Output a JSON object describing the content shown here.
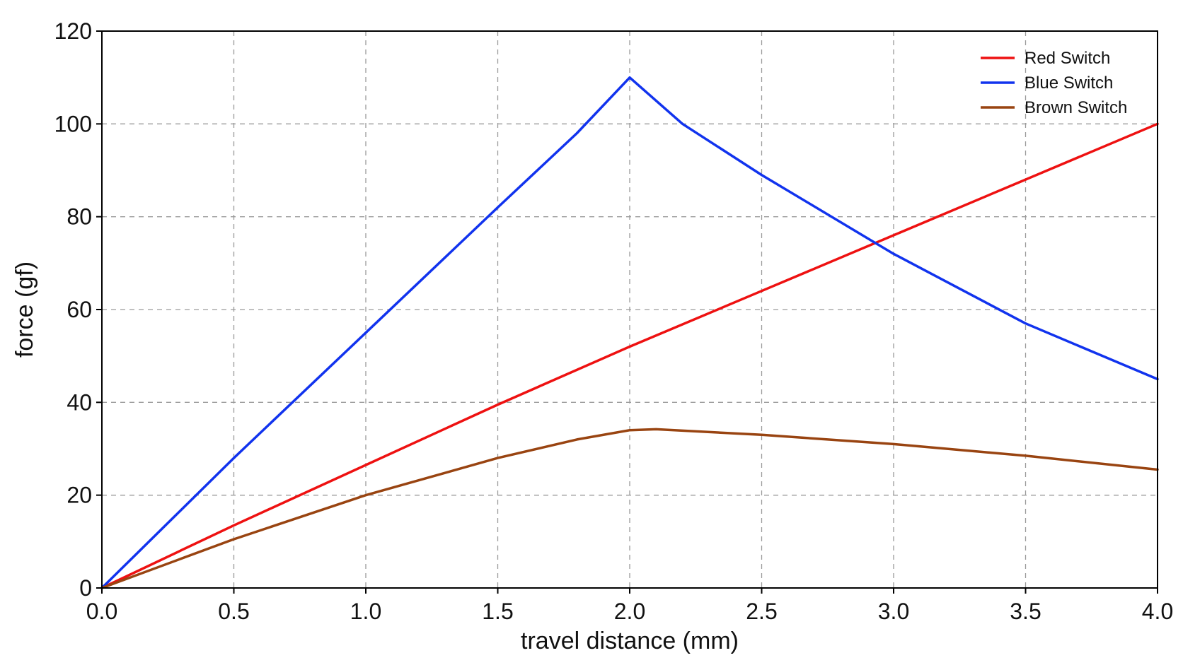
{
  "chart_data": {
    "type": "line",
    "xlabel": "travel distance (mm)",
    "ylabel": "force (gf)",
    "xlim": [
      0.0,
      4.0
    ],
    "ylim": [
      0,
      120
    ],
    "xticks": [
      0.0,
      0.5,
      1.0,
      1.5,
      2.0,
      2.5,
      3.0,
      3.5,
      4.0
    ],
    "xtick_labels": [
      "0.0",
      "0.5",
      "1.0",
      "1.5",
      "2.0",
      "2.5",
      "3.0",
      "3.5",
      "4.0"
    ],
    "yticks": [
      0,
      20,
      40,
      60,
      80,
      100,
      120
    ],
    "ytick_labels": [
      "0",
      "20",
      "40",
      "60",
      "80",
      "100",
      "120"
    ],
    "grid": true,
    "legend_position": "top-right",
    "series": [
      {
        "name": "Red Switch",
        "color": "#ee1111",
        "x": [
          0.0,
          0.5,
          1.0,
          1.5,
          2.0,
          2.5,
          3.0,
          3.5,
          4.0
        ],
        "y": [
          0,
          13.5,
          26.5,
          39.5,
          52,
          64,
          76,
          88,
          100
        ]
      },
      {
        "name": "Blue Switch",
        "color": "#1133ee",
        "x": [
          0.0,
          0.5,
          1.0,
          1.5,
          1.8,
          2.0,
          2.2,
          2.5,
          3.0,
          3.5,
          4.0
        ],
        "y": [
          0,
          28,
          55,
          82,
          98,
          110,
          100,
          89,
          72,
          57,
          45
        ]
      },
      {
        "name": "Brown Switch",
        "color": "#994411",
        "x": [
          0.0,
          0.5,
          1.0,
          1.5,
          1.8,
          2.0,
          2.1,
          2.5,
          3.0,
          3.5,
          4.0
        ],
        "y": [
          0,
          10.5,
          20,
          28,
          32,
          34,
          34.2,
          33,
          31,
          28.5,
          25.5
        ]
      }
    ]
  }
}
